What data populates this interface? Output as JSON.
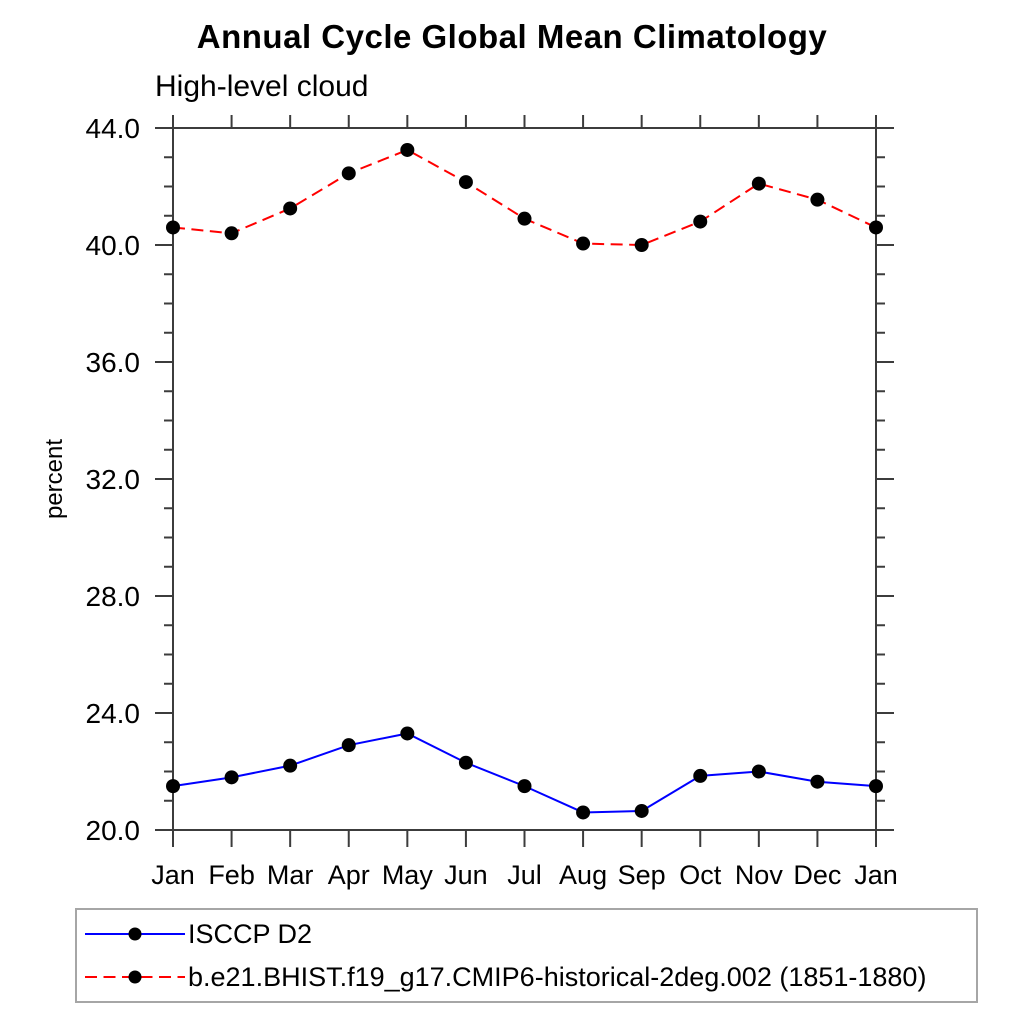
{
  "title": "Annual Cycle Global Mean Climatology",
  "subtitle": "High-level cloud",
  "chart_data": {
    "type": "line",
    "x_categories": [
      "Jan",
      "Feb",
      "Mar",
      "Apr",
      "May",
      "Jun",
      "Jul",
      "Aug",
      "Sep",
      "Oct",
      "Nov",
      "Dec",
      "Jan"
    ],
    "ylabel": "percent",
    "ylim": [
      20.0,
      44.0
    ],
    "yticks_major": [
      20.0,
      24.0,
      28.0,
      32.0,
      36.0,
      40.0,
      44.0
    ],
    "ytick_labels": [
      "20.0",
      "24.0",
      "28.0",
      "32.0",
      "36.0",
      "40.0",
      "44.0"
    ],
    "yminor_step": 1.0,
    "grid": false,
    "legend_position": "bottom-left-box",
    "axis_color": "#3c3c3c",
    "series": [
      {
        "name": "ISCCP D2",
        "color": "#0000ff",
        "style": "solid",
        "marker": "filled-circle",
        "marker_color": "#000000",
        "values": [
          21.5,
          21.8,
          22.2,
          22.9,
          23.3,
          22.3,
          21.5,
          20.6,
          20.65,
          21.85,
          22.0,
          21.65,
          21.5
        ]
      },
      {
        "name": "b.e21.BHIST.f19_g17.CMIP6-historical-2deg.002 (1851-1880)",
        "color": "#ff0000",
        "style": "dashed",
        "marker": "filled-circle",
        "marker_color": "#000000",
        "values": [
          40.6,
          40.4,
          41.25,
          42.45,
          43.25,
          42.15,
          40.9,
          40.05,
          40.0,
          40.8,
          42.1,
          41.55,
          40.6
        ]
      }
    ]
  }
}
